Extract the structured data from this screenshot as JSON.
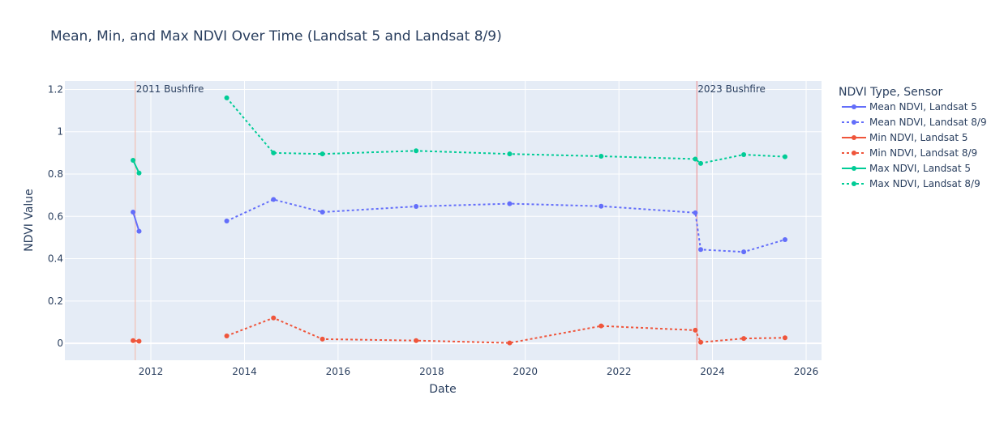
{
  "chart_data": {
    "type": "line",
    "title": "Mean, Min, and Max NDVI Over Time (Landsat 5 and Landsat 8/9)",
    "xlabel": "Date",
    "ylabel": "NDVI Value",
    "xlim": [
      "2010-03-01",
      "2026-05-01"
    ],
    "ylim": [
      -0.08,
      1.24
    ],
    "x_ticks": [
      "2012",
      "2014",
      "2016",
      "2018",
      "2020",
      "2022",
      "2024",
      "2026"
    ],
    "y_ticks": [
      "0",
      "0.2",
      "0.4",
      "0.6",
      "0.8",
      "1",
      "1.2"
    ],
    "grid": true,
    "legend": {
      "title": "NDVI Type, Sensor",
      "placement": "right"
    },
    "series": [
      {
        "name": "Mean NDVI, Landsat 5",
        "color": "#636efa",
        "dash": "solid",
        "x": [
          "2011-08-15",
          "2011-10-01"
        ],
        "y": [
          0.62,
          0.53
        ]
      },
      {
        "name": "Mean NDVI, Landsat 8/9",
        "color": "#636efa",
        "dash": "dot",
        "x": [
          "2013-08-15",
          "2014-08-15",
          "2015-09-01",
          "2017-09-01",
          "2019-09-01",
          "2021-08-15",
          "2023-08-20",
          "2023-10-01",
          "2024-09-01",
          "2025-07-20"
        ],
        "y": [
          0.578,
          0.68,
          0.62,
          0.647,
          0.66,
          0.648,
          0.617,
          0.443,
          0.432,
          0.49
        ]
      },
      {
        "name": "Min NDVI, Landsat 5",
        "color": "#ef553b",
        "dash": "solid",
        "x": [
          "2011-08-15",
          "2011-10-01"
        ],
        "y": [
          0.013,
          0.01
        ]
      },
      {
        "name": "Min NDVI, Landsat 8/9",
        "color": "#ef553b",
        "dash": "dot",
        "x": [
          "2013-08-15",
          "2014-08-15",
          "2015-09-01",
          "2017-09-01",
          "2019-09-01",
          "2021-08-15",
          "2023-08-20",
          "2023-10-01",
          "2024-09-01",
          "2025-07-20"
        ],
        "y": [
          0.035,
          0.12,
          0.02,
          0.013,
          0.002,
          0.082,
          0.062,
          0.005,
          0.023,
          0.026
        ]
      },
      {
        "name": "Max NDVI, Landsat 5",
        "color": "#00cc96",
        "dash": "solid",
        "x": [
          "2011-08-15",
          "2011-10-01"
        ],
        "y": [
          0.865,
          0.805
        ]
      },
      {
        "name": "Max NDVI, Landsat 8/9",
        "color": "#00cc96",
        "dash": "dot",
        "x": [
          "2013-08-15",
          "2014-08-15",
          "2015-09-01",
          "2017-09-01",
          "2019-09-01",
          "2021-08-15",
          "2023-08-20",
          "2023-10-01",
          "2024-09-01",
          "2025-07-20"
        ],
        "y": [
          1.16,
          0.9,
          0.895,
          0.91,
          0.895,
          0.884,
          0.871,
          0.85,
          0.892,
          0.882
        ]
      }
    ],
    "annotations": [
      {
        "text": "2011 Bushfire",
        "x": "2011-09-01",
        "color": "#f4b8a8"
      },
      {
        "text": "2023 Bushfire",
        "x": "2023-09-01",
        "color": "#ef8a8a"
      }
    ]
  }
}
